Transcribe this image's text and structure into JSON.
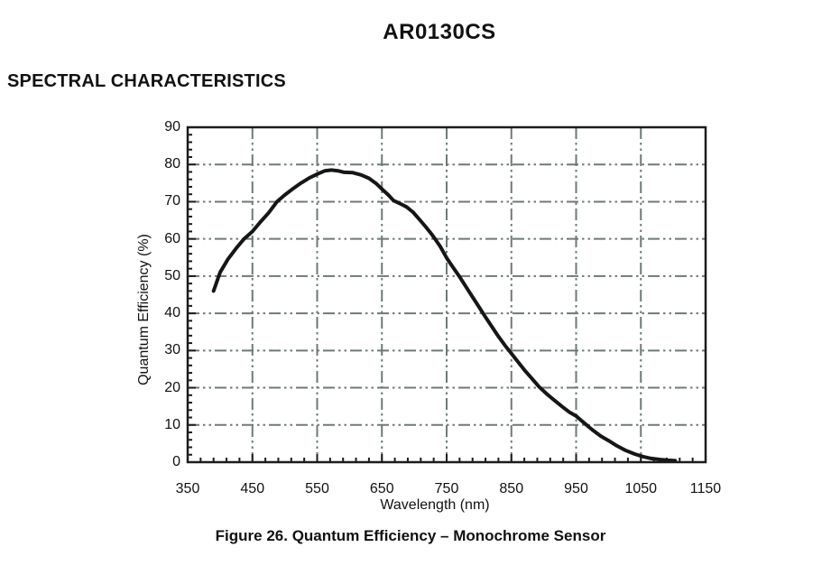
{
  "page": {
    "title": "AR0130CS",
    "section_heading": "SPECTRAL CHARACTERISTICS",
    "figure_caption": "Figure 26. Quantum Efficiency – Monochrome Sensor"
  },
  "colors": {
    "background": "#ffffff",
    "text": "#111111",
    "axis": "#1c1c1c",
    "grid": "#6e7a75",
    "curve": "#161616"
  },
  "chart_data": {
    "type": "line",
    "title": "",
    "xlabel": "Wavelength (nm)",
    "ylabel": "Quantum Efficiency (%)",
    "xlim": [
      350,
      1150
    ],
    "ylim": [
      0,
      90
    ],
    "x_ticks": [
      350,
      450,
      550,
      650,
      750,
      850,
      950,
      1050,
      1150
    ],
    "y_ticks": [
      0,
      10,
      20,
      30,
      40,
      50,
      60,
      70,
      80,
      90
    ],
    "x_minor_step": 20,
    "y_minor_step": 2,
    "grid": true,
    "grid_style": "dash-dot",
    "legend": "none",
    "series": [
      {
        "name": "Monochrome sensor quantum efficiency",
        "x": [
          390,
          400,
          412,
          425,
          437,
          450,
          462,
          475,
          488,
          500,
          512,
          525,
          538,
          550,
          562,
          572,
          582,
          592,
          605,
          618,
          630,
          641,
          650,
          660,
          668,
          678,
          688,
          698,
          708,
          718,
          728,
          740,
          750,
          760,
          770,
          780,
          790,
          800,
          810,
          820,
          830,
          840,
          850,
          860,
          870,
          881,
          893,
          905,
          916,
          928,
          940,
          950,
          962,
          975,
          988,
          1000,
          1013,
          1026,
          1040,
          1053,
          1066,
          1080,
          1092,
          1103
        ],
        "y": [
          46,
          51,
          54.5,
          57.5,
          60,
          62,
          64.5,
          67,
          70,
          71.8,
          73.4,
          75,
          76.4,
          77.4,
          78.3,
          78.5,
          78.3,
          77.9,
          77.8,
          77.2,
          76.3,
          74.9,
          73.4,
          71.8,
          70.3,
          69.5,
          68.6,
          67.2,
          65.2,
          63.2,
          61,
          58,
          54.9,
          52.3,
          49.8,
          47.1,
          44.4,
          41.7,
          39,
          36.4,
          33.8,
          31.4,
          29.2,
          27,
          24.8,
          22.6,
          20.2,
          18.3,
          16.7,
          15,
          13.4,
          12.4,
          10.6,
          8.7,
          7,
          5.8,
          4.4,
          3.2,
          2.2,
          1.5,
          1.0,
          0.7,
          0.5,
          0.4
        ]
      }
    ]
  }
}
